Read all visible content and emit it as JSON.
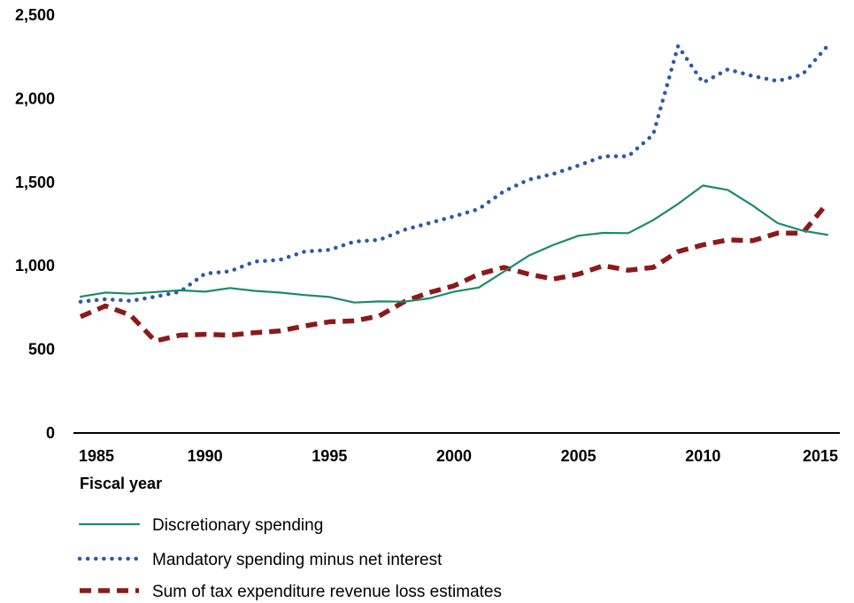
{
  "chart_data": {
    "type": "line",
    "title": "",
    "xlabel": "Fiscal year",
    "ylabel": "",
    "xlim": [
      1985,
      2015
    ],
    "ylim": [
      0,
      2500
    ],
    "x_ticks": [
      {
        "value": 1985,
        "label": "1985"
      },
      {
        "value": 1990,
        "label": "1990"
      },
      {
        "value": 1995,
        "label": "1995"
      },
      {
        "value": 2000,
        "label": "2000"
      },
      {
        "value": 2005,
        "label": "2005"
      },
      {
        "value": 2010,
        "label": "2010"
      },
      {
        "value": 2015,
        "label": "2015"
      }
    ],
    "y_ticks": [
      {
        "value": 0,
        "label": "0"
      },
      {
        "value": 500,
        "label": "500"
      },
      {
        "value": 1000,
        "label": "1,000"
      },
      {
        "value": 1500,
        "label": "1,500"
      },
      {
        "value": 2000,
        "label": "2,000"
      },
      {
        "value": 2500,
        "label": "2,500"
      }
    ],
    "grid": false,
    "legend_position": "bottom",
    "x": [
      1985,
      1986,
      1987,
      1988,
      1989,
      1990,
      1991,
      1992,
      1993,
      1994,
      1995,
      1996,
      1997,
      1998,
      1999,
      2000,
      2001,
      2002,
      2003,
      2004,
      2005,
      2006,
      2007,
      2008,
      2009,
      2010,
      2011,
      2012,
      2013,
      2014,
      2015
    ],
    "series": [
      {
        "name": "Discretionary spending",
        "color": "#1b8a6b",
        "style": "solid",
        "values": [
          810,
          835,
          828,
          838,
          848,
          840,
          862,
          845,
          835,
          820,
          808,
          775,
          782,
          780,
          800,
          840,
          865,
          960,
          1055,
          1120,
          1175,
          1192,
          1190,
          1268,
          1365,
          1475,
          1448,
          1355,
          1250,
          1205,
          1180
        ]
      },
      {
        "name": "Mandatory spending minus net interest",
        "color": "#2e5aa3",
        "style": "dotted",
        "values": [
          780,
          795,
          785,
          810,
          840,
          948,
          962,
          1020,
          1030,
          1080,
          1090,
          1140,
          1150,
          1210,
          1250,
          1290,
          1335,
          1440,
          1510,
          1545,
          1595,
          1650,
          1650,
          1780,
          2310,
          2090,
          2170,
          2130,
          2100,
          2140,
          2310
        ]
      },
      {
        "name": "Sum of tax expenditure revenue loss estimates",
        "color": "#8b1a1a",
        "style": "dashed",
        "values": [
          690,
          755,
          700,
          545,
          580,
          585,
          580,
          595,
          605,
          635,
          660,
          665,
          695,
          780,
          835,
          875,
          945,
          985,
          945,
          915,
          945,
          995,
          968,
          985,
          1080,
          1120,
          1150,
          1145,
          1190,
          1190,
          1370
        ]
      }
    ]
  }
}
